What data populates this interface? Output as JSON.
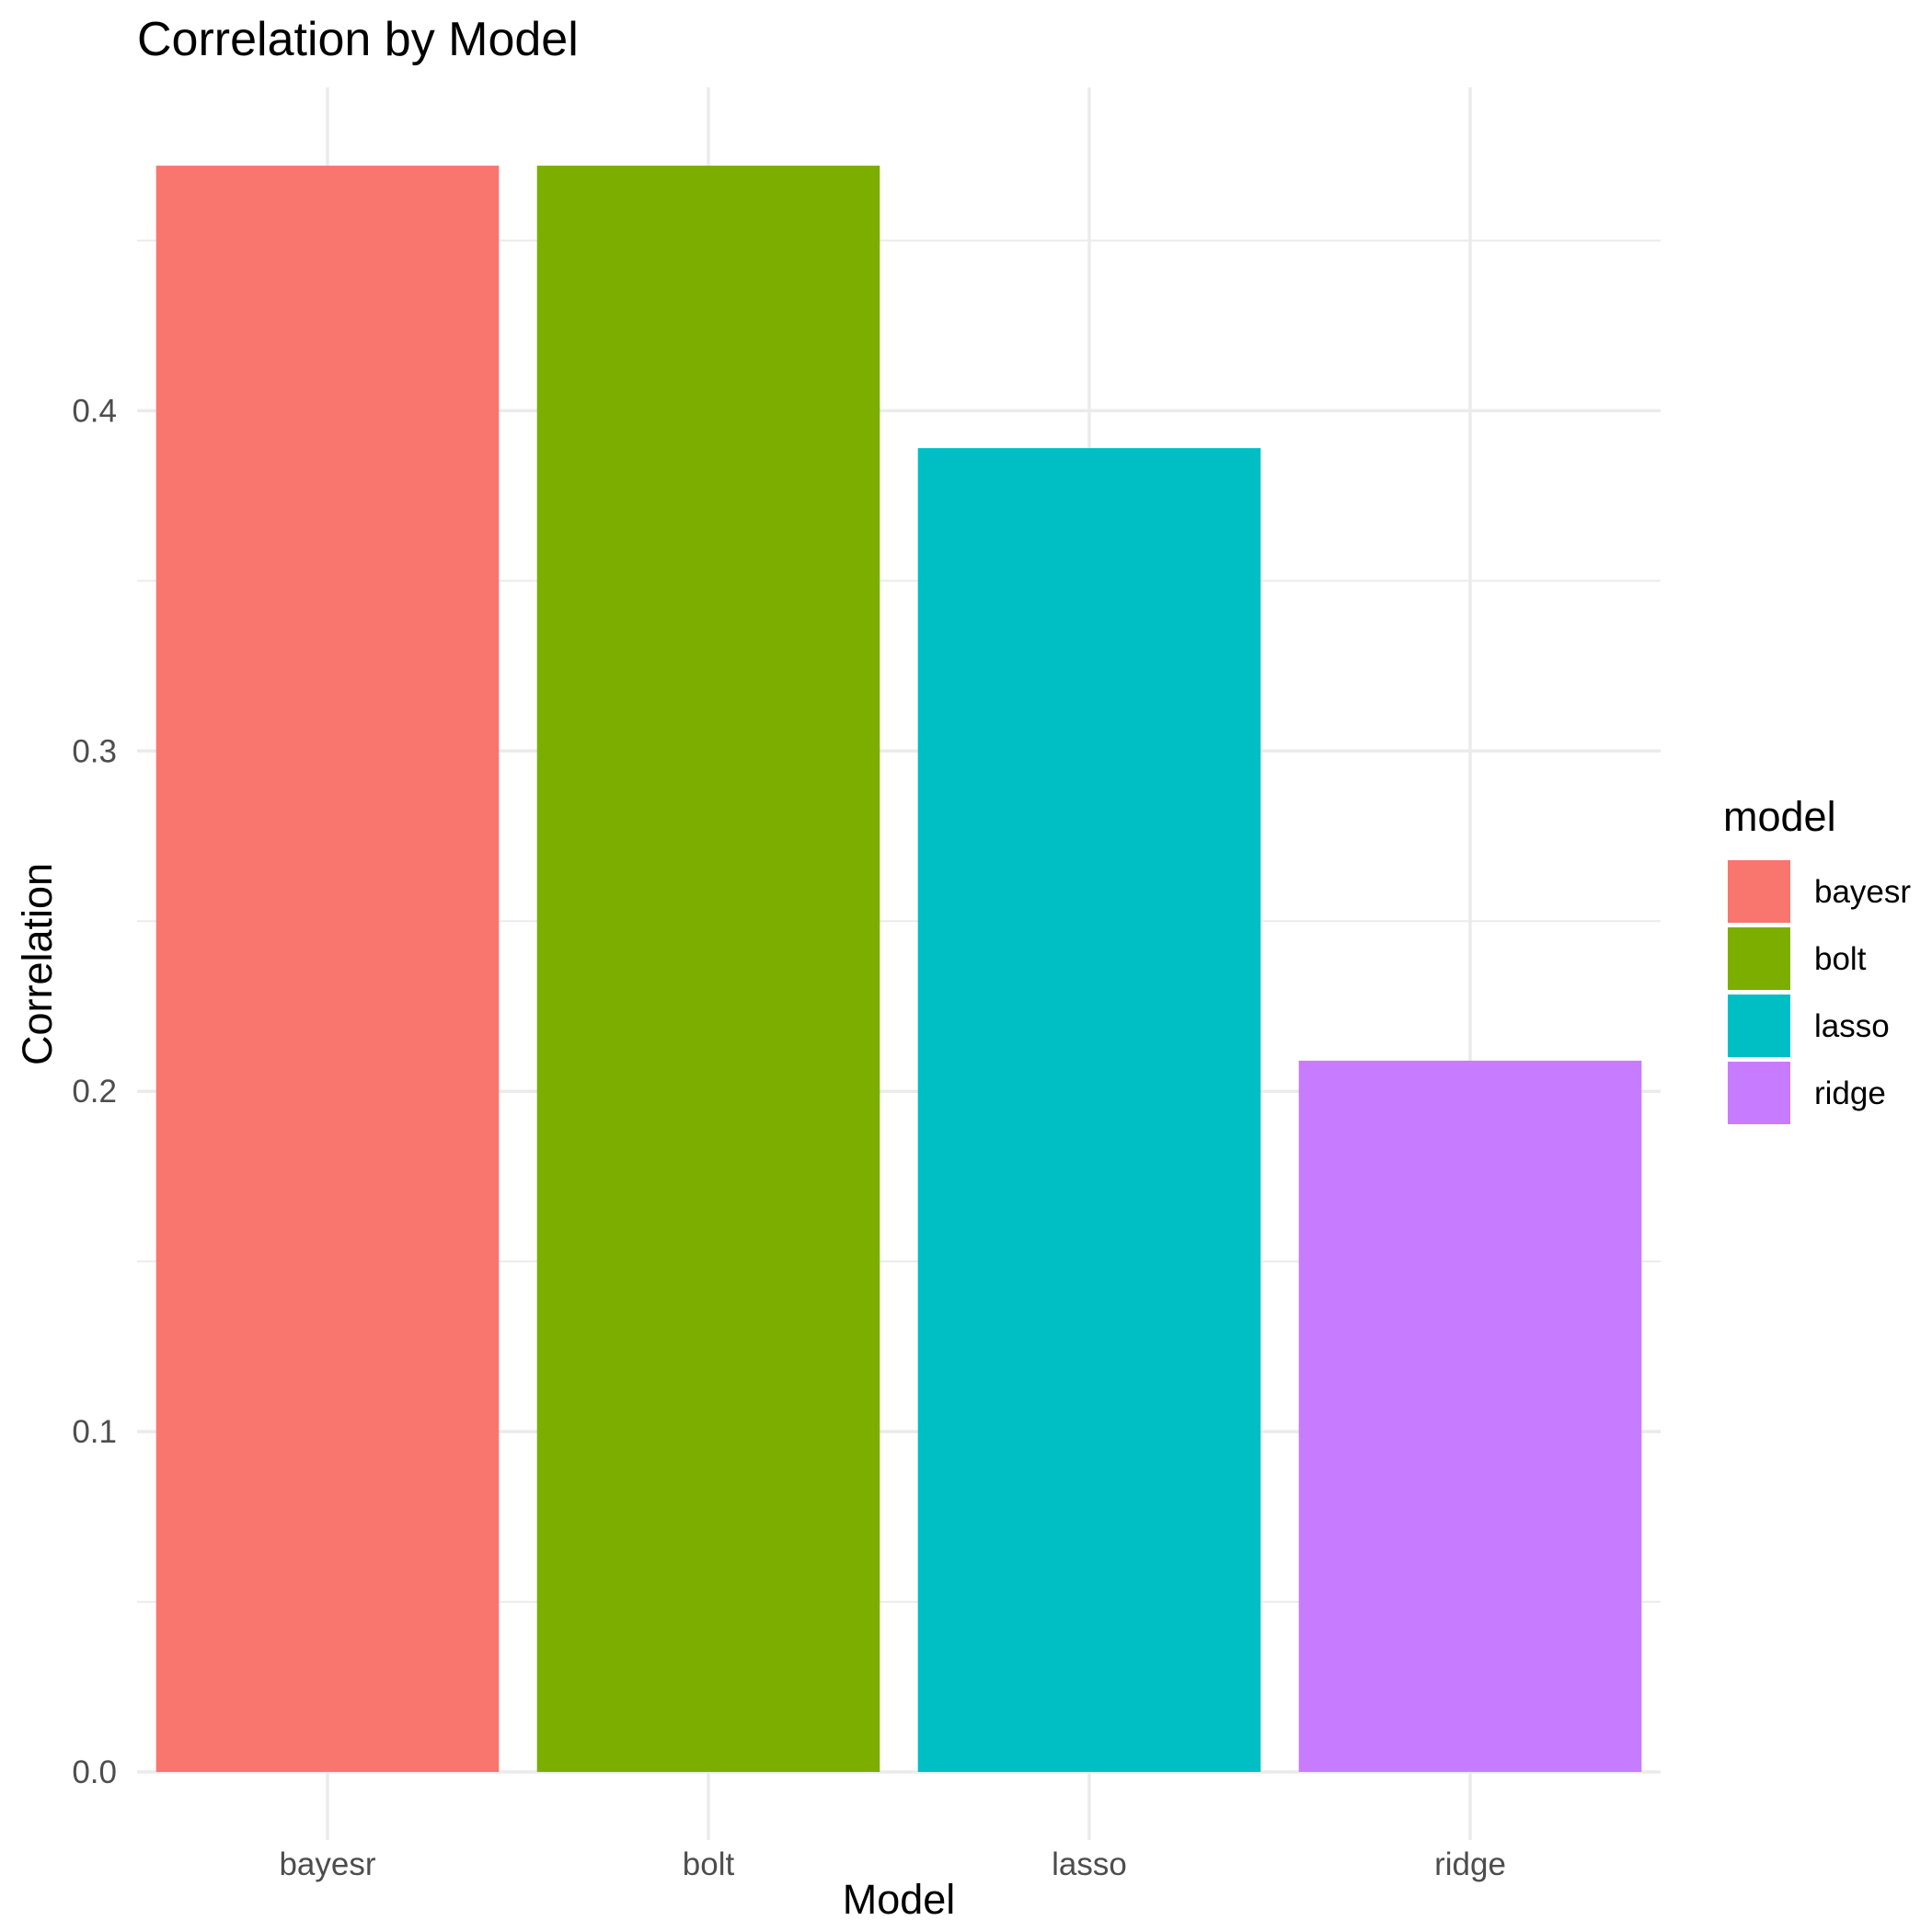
{
  "chart_data": {
    "type": "bar",
    "title": "Correlation by Model",
    "xlabel": "Model",
    "ylabel": "Correlation",
    "categories": [
      "bayesr",
      "bolt",
      "lasso",
      "ridge"
    ],
    "values": [
      0.472,
      0.472,
      0.389,
      0.209
    ],
    "colors": [
      "#F8766D",
      "#7CAE00",
      "#00BFC4",
      "#C77CFF"
    ],
    "y_ticks": [
      "0.0",
      "0.1",
      "0.2",
      "0.3",
      "0.4"
    ],
    "y_tick_values": [
      0,
      0.1,
      0.2,
      0.3,
      0.4
    ],
    "ylim": [
      -0.02,
      0.495
    ],
    "grid": true,
    "legend": {
      "title": "model",
      "position": "right",
      "entries": [
        "bayesr",
        "bolt",
        "lasso",
        "ridge"
      ]
    }
  }
}
